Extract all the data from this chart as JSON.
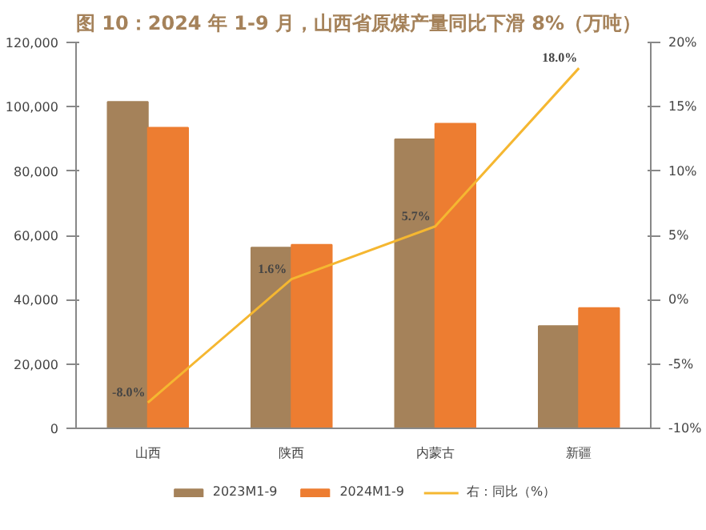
{
  "chart_data": {
    "type": "bar",
    "title": "图 10：2024 年 1-9 月，山西省原煤产量同比下滑 8%（万吨）",
    "categories": [
      "山西",
      "陕西",
      "内蒙古",
      "新疆"
    ],
    "series": [
      {
        "name": "2023M1-9",
        "color": "#a5825a",
        "values": [
          101500,
          56200,
          89900,
          31800
        ]
      },
      {
        "name": "2024M1-9",
        "color": "#ed7d31",
        "values": [
          93500,
          57100,
          94700,
          37400
        ]
      },
      {
        "name": "右：同比（%）",
        "type": "line",
        "axis": "y2",
        "color": "#f5b731",
        "values": [
          -8.0,
          1.6,
          5.7,
          18.0
        ],
        "value_labels": [
          "-8.0%",
          "1.6%",
          "5.7%",
          "18.0%"
        ]
      }
    ],
    "ylim": [
      0,
      120000
    ],
    "yticks": [
      {
        "value": 0,
        "label": "0"
      },
      {
        "value": 20000,
        "label": "20,000"
      },
      {
        "value": 40000,
        "label": "40,000"
      },
      {
        "value": 60000,
        "label": "60,000"
      },
      {
        "value": 80000,
        "label": "80,000"
      },
      {
        "value": 100000,
        "label": "100,000"
      },
      {
        "value": 120000,
        "label": "120,000"
      }
    ],
    "y2lim": [
      -10,
      20
    ],
    "y2ticks": [
      {
        "value": -10,
        "label": "-10%"
      },
      {
        "value": -5,
        "label": "-5%"
      },
      {
        "value": 0,
        "label": "0%"
      },
      {
        "value": 5,
        "label": "5%"
      },
      {
        "value": 10,
        "label": "10%"
      },
      {
        "value": 15,
        "label": "15%"
      },
      {
        "value": 20,
        "label": "20%"
      }
    ],
    "grid": false,
    "legend": "bottom",
    "marker": "none"
  }
}
